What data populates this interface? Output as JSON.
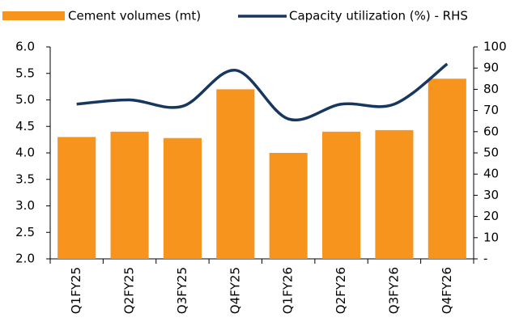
{
  "chart_data": {
    "type": "bar",
    "categories": [
      "Q1FY25",
      "Q2FY25",
      "Q3FY25",
      "Q4FY25",
      "Q1FY26",
      "Q2FY26",
      "Q3FY26",
      "Q4FY26"
    ],
    "series": [
      {
        "name": "Cement volumes (mt)",
        "type": "bar",
        "color": "#f7941d",
        "values": [
          4.3,
          4.4,
          4.28,
          5.2,
          4.0,
          4.4,
          4.43,
          5.4
        ]
      },
      {
        "name": "Capacity utilization (%) - RHS",
        "type": "line",
        "axis": "y2",
        "color": "#17375e",
        "values": [
          73,
          75,
          72,
          89,
          66,
          73,
          73,
          92
        ]
      }
    ],
    "ylim": [
      2,
      6
    ],
    "yticks": [
      {
        "value": 2,
        "label": "2.0"
      },
      2.5,
      {
        "value": 3,
        "label": "3.0"
      },
      3.5,
      {
        "value": 4,
        "label": "4.0"
      },
      4.5,
      {
        "value": 5,
        "label": "5.0"
      },
      5.5,
      {
        "value": 6,
        "label": "6.0"
      }
    ],
    "y2lim": [
      0,
      100
    ],
    "y2ticks": [
      {
        "value": 0,
        "label": "-"
      },
      10,
      20,
      30,
      40,
      50,
      60,
      70,
      80,
      90,
      100
    ],
    "legend": "top"
  }
}
